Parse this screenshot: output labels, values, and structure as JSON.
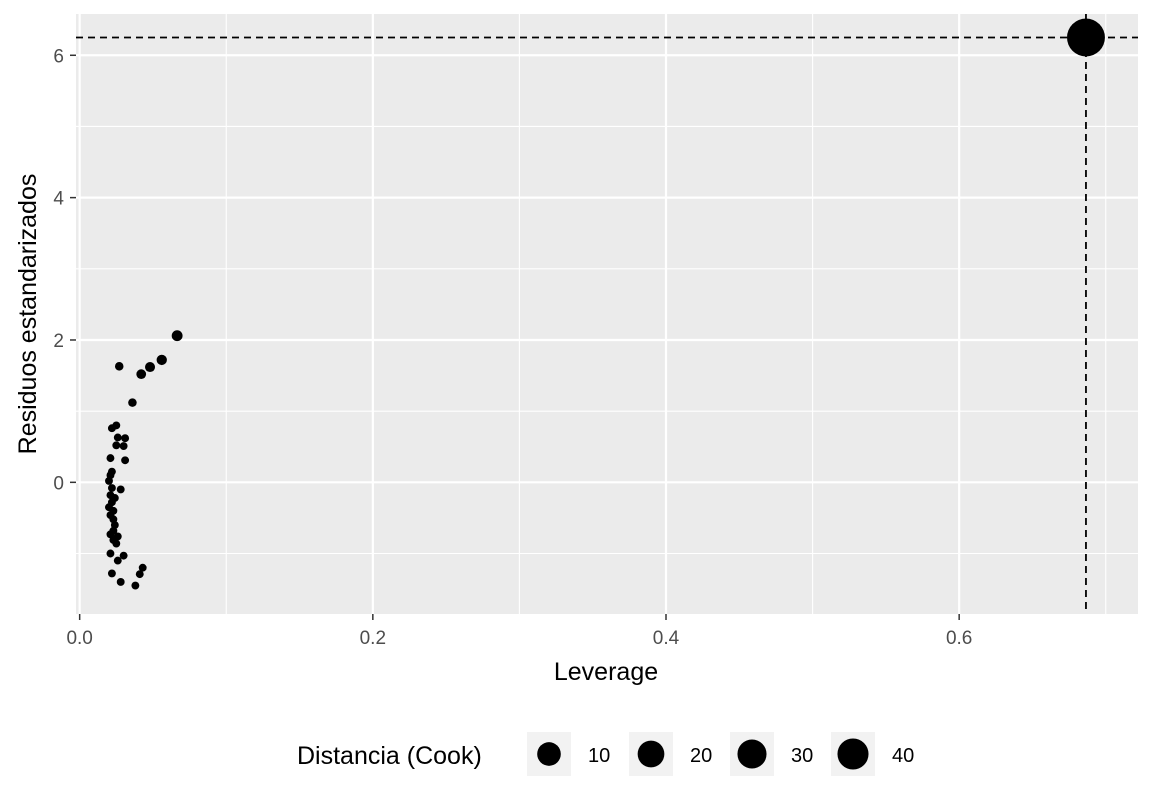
{
  "chart_data": {
    "type": "scatter",
    "title": "",
    "xlabel": "Leverage",
    "ylabel": "Residuos estandarizados",
    "xlim": [
      -0.0025,
      0.722
    ],
    "ylim": [
      -1.85,
      6.58
    ],
    "x_ticks": [
      0.0,
      0.2,
      0.4,
      0.6
    ],
    "x_tick_labels": [
      "0.0",
      "0.2",
      "0.4",
      "0.6"
    ],
    "y_ticks": [
      0,
      2,
      4,
      6
    ],
    "y_tick_labels": [
      "0",
      "2",
      "4",
      "6"
    ],
    "grid": true,
    "background": "#ebebeb",
    "point_color": "#000000",
    "reference_lines": {
      "hline_y": 6.25,
      "vline_x": 0.6865,
      "style": "dashed"
    },
    "size_legend": {
      "title": "Distancia (Cook)",
      "placement": "bottom",
      "entries": [
        {
          "label": "10",
          "value": 10
        },
        {
          "label": "20",
          "value": 20
        },
        {
          "label": "30",
          "value": 30
        },
        {
          "label": "40",
          "value": 40
        }
      ]
    },
    "points": [
      {
        "x": 0.6865,
        "y": 6.25,
        "cook": 45
      },
      {
        "x": 0.0665,
        "y": 2.06,
        "cook": 0.9
      },
      {
        "x": 0.056,
        "y": 1.72,
        "cook": 0.7
      },
      {
        "x": 0.048,
        "y": 1.62,
        "cook": 0.6
      },
      {
        "x": 0.042,
        "y": 1.52,
        "cook": 0.5
      },
      {
        "x": 0.027,
        "y": 1.63,
        "cook": 0.2
      },
      {
        "x": 0.036,
        "y": 1.12,
        "cook": 0.2
      },
      {
        "x": 0.025,
        "y": 0.8,
        "cook": 0.1
      },
      {
        "x": 0.022,
        "y": 0.76,
        "cook": 0.1
      },
      {
        "x": 0.031,
        "y": 0.62,
        "cook": 0.1
      },
      {
        "x": 0.026,
        "y": 0.63,
        "cook": 0.1
      },
      {
        "x": 0.025,
        "y": 0.52,
        "cook": 0.1
      },
      {
        "x": 0.03,
        "y": 0.51,
        "cook": 0.1
      },
      {
        "x": 0.021,
        "y": 0.34,
        "cook": 0.1
      },
      {
        "x": 0.031,
        "y": 0.31,
        "cook": 0.1
      },
      {
        "x": 0.022,
        "y": 0.15,
        "cook": 0.1
      },
      {
        "x": 0.021,
        "y": 0.1,
        "cook": 0.1
      },
      {
        "x": 0.02,
        "y": 0.02,
        "cook": 0.1
      },
      {
        "x": 0.022,
        "y": -0.08,
        "cook": 0.1
      },
      {
        "x": 0.028,
        "y": -0.1,
        "cook": 0.1
      },
      {
        "x": 0.021,
        "y": -0.18,
        "cook": 0.1
      },
      {
        "x": 0.024,
        "y": -0.22,
        "cook": 0.1
      },
      {
        "x": 0.022,
        "y": -0.28,
        "cook": 0.1
      },
      {
        "x": 0.02,
        "y": -0.35,
        "cook": 0.1
      },
      {
        "x": 0.023,
        "y": -0.4,
        "cook": 0.1
      },
      {
        "x": 0.021,
        "y": -0.46,
        "cook": 0.1
      },
      {
        "x": 0.023,
        "y": -0.52,
        "cook": 0.1
      },
      {
        "x": 0.024,
        "y": -0.6,
        "cook": 0.1
      },
      {
        "x": 0.023,
        "y": -0.68,
        "cook": 0.1
      },
      {
        "x": 0.021,
        "y": -0.73,
        "cook": 0.1
      },
      {
        "x": 0.026,
        "y": -0.76,
        "cook": 0.1
      },
      {
        "x": 0.023,
        "y": -0.81,
        "cook": 0.1
      },
      {
        "x": 0.025,
        "y": -0.86,
        "cook": 0.1
      },
      {
        "x": 0.021,
        "y": -1.0,
        "cook": 0.1
      },
      {
        "x": 0.03,
        "y": -1.03,
        "cook": 0.1
      },
      {
        "x": 0.026,
        "y": -1.1,
        "cook": 0.1
      },
      {
        "x": 0.043,
        "y": -1.2,
        "cook": 0.1
      },
      {
        "x": 0.022,
        "y": -1.28,
        "cook": 0.1
      },
      {
        "x": 0.041,
        "y": -1.29,
        "cook": 0.1
      },
      {
        "x": 0.028,
        "y": -1.4,
        "cook": 0.1
      },
      {
        "x": 0.038,
        "y": -1.45,
        "cook": 0.1
      }
    ]
  }
}
